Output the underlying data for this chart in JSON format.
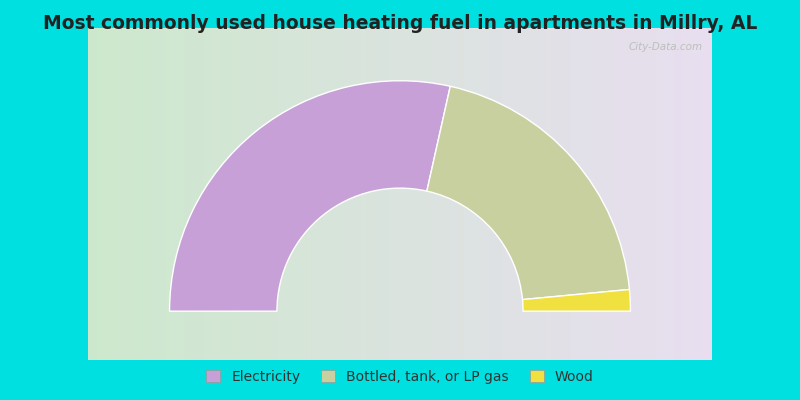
{
  "title": "Most commonly used house heating fuel in apartments in Millry, AL",
  "title_fontsize": 13.5,
  "segments": [
    {
      "label": "Electricity",
      "value": 57,
      "color": "#c8a0d8"
    },
    {
      "label": "Bottled, tank, or LP gas",
      "value": 40,
      "color": "#c8d0a0"
    },
    {
      "label": "Wood",
      "value": 3,
      "color": "#f0e040"
    }
  ],
  "outer_color": "#00e0e0",
  "legend_fontsize": 10,
  "watermark": "City-Data.com"
}
